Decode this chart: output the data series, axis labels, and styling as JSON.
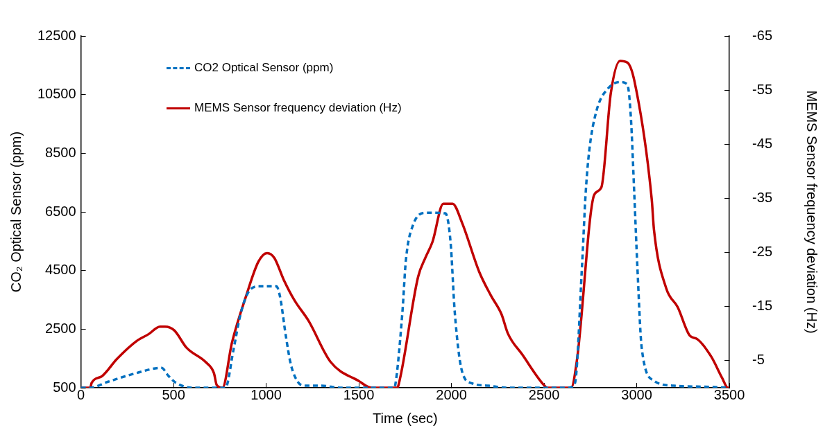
{
  "chart_data": {
    "type": "line",
    "xlabel": "Time (sec)",
    "ylabel": "CO₂ Optical Sensor (ppm)",
    "y2label": "MEMS Sensor frequency deviation (Hz)",
    "xlim": [
      0,
      3500
    ],
    "xticks": [
      0,
      500,
      1000,
      1500,
      2000,
      2500,
      3000,
      3500
    ],
    "ylim": [
      500,
      12500
    ],
    "yticks": [
      500,
      2500,
      4500,
      6500,
      8500,
      10500,
      12500
    ],
    "y2lim": [
      0,
      -65
    ],
    "y2ticks": [
      -5,
      -15,
      -25,
      -35,
      -45,
      -55,
      -65
    ],
    "grid": false,
    "legend": "top left",
    "marker": "none",
    "series": [
      {
        "name": "CO2 Optical Sensor (ppm)",
        "color": "#0070c0",
        "line_style": "dashed",
        "x": [
          0,
          50,
          144,
          299,
          435,
          473,
          512,
          609,
          780,
          823,
          861,
          900,
          958,
          1055,
          1075,
          1106,
          1133,
          1172,
          1211,
          1300,
          1400,
          1690,
          1696,
          1735,
          1754,
          1793,
          1863,
          1967,
          1995,
          2018,
          2057,
          2111,
          2200,
          2300,
          2630,
          2666,
          2705,
          2724,
          2743,
          2782,
          2848,
          2910,
          2949,
          2968,
          2988,
          3003,
          3027,
          3093,
          3200,
          3400,
          3500
        ],
        "values": [
          500,
          500,
          700,
          1000,
          1180,
          900,
          670,
          500,
          500,
          1780,
          3000,
          3720,
          3960,
          3960,
          3600,
          2270,
          1300,
          690,
          570,
          570,
          500,
          500,
          570,
          3060,
          4850,
          6060,
          6470,
          6450,
          5480,
          3060,
          1060,
          650,
          570,
          500,
          500,
          650,
          4690,
          7100,
          8550,
          9930,
          10730,
          10930,
          10850,
          9760,
          6930,
          4690,
          1850,
          740,
          570,
          530,
          500
        ]
      },
      {
        "name": "MEMS Sensor frequency deviation (Hz)",
        "color": "#c00000",
        "line_style": "solid",
        "axis": "y2",
        "x": [
          0,
          50,
          58,
          116,
          194,
          299,
          365,
          427,
          454,
          504,
          570,
          675,
          718,
          733,
          764,
          815,
          893,
          958,
          1005,
          1044,
          1094,
          1152,
          1230,
          1347,
          1502,
          1568,
          1707,
          1723,
          1820,
          1859,
          1898,
          1956,
          2006,
          2057,
          2150,
          2212,
          2270,
          2305,
          2383,
          2499,
          2518,
          2646,
          2678,
          2771,
          2809,
          2860,
          2910,
          2949,
          2988,
          3081,
          3093,
          3159,
          3221,
          3287,
          3326,
          3403,
          3461,
          3492,
          3500
        ],
        "values": [
          0,
          0,
          -0.9,
          -2.2,
          -5.3,
          -8.6,
          -9.9,
          -11.3,
          -11.3,
          -10.6,
          -7.4,
          -4.7,
          -2.7,
          -0.5,
          0,
          -8.3,
          -17.1,
          -23.3,
          -24.9,
          -24,
          -20,
          -16.2,
          -12.3,
          -4.8,
          -1.2,
          0,
          0,
          -1.8,
          -20.5,
          -24,
          -27,
          -34,
          -34,
          -30.5,
          -21.4,
          -17.1,
          -13.6,
          -10,
          -6.1,
          -0.5,
          0,
          0,
          -5.3,
          -35.7,
          -37,
          -54.4,
          -60.4,
          -60.1,
          -56.6,
          -34.8,
          -29.2,
          -18.4,
          -14.9,
          -9.6,
          -9,
          -5.7,
          -1.8,
          0,
          0
        ]
      }
    ]
  }
}
